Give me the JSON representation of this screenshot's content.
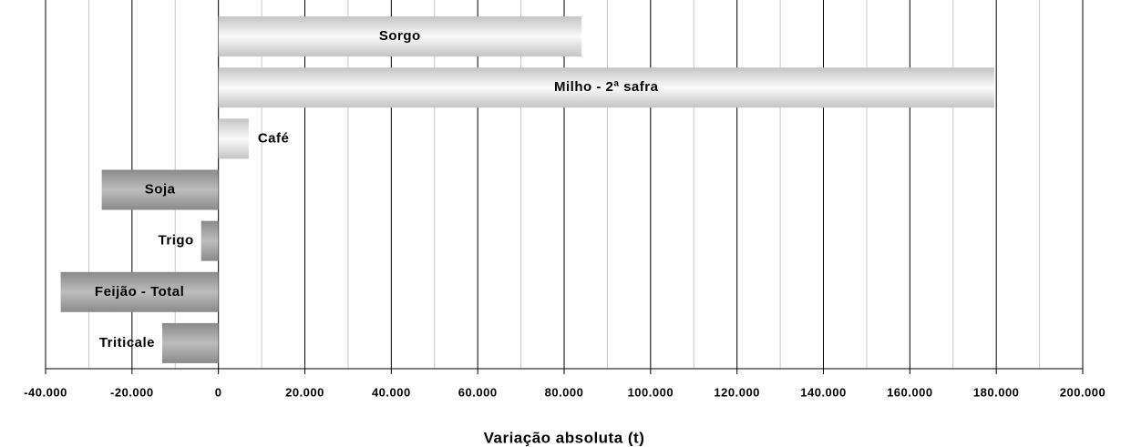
{
  "chart_data": {
    "type": "barh",
    "xlabel": "Variação absoluta (t)",
    "categories": [
      "Sorgo",
      "Milho -  2ª safra",
      "Café",
      "Soja",
      "Trigo",
      "Feijão - Total",
      "Triticale"
    ],
    "values": [
      84000,
      179500,
      7000,
      -27000,
      -4000,
      -36500,
      -13000
    ],
    "colors": [
      "#c4c4c4",
      "#c4c4c4",
      "#c4c4c4",
      "#8a8a8a",
      "#8a8a8a",
      "#8a8a8a",
      "#8a8a8a"
    ],
    "xlim": [
      -40000,
      200000
    ],
    "xticks": [
      {
        "value": -40000,
        "label": "-40.000"
      },
      {
        "value": -20000,
        "label": "-20.000"
      },
      0,
      {
        "value": 20000,
        "label": "20.000"
      },
      {
        "value": 40000,
        "label": "40.000"
      },
      {
        "value": 60000,
        "label": "60.000"
      },
      {
        "value": 80000,
        "label": "80.000"
      },
      {
        "value": 100000,
        "label": "100.000"
      },
      {
        "value": 120000,
        "label": "120.000"
      },
      {
        "value": 140000,
        "label": "140.000"
      },
      {
        "value": 160000,
        "label": "160.000"
      },
      {
        "value": 180000,
        "label": "180.000"
      },
      {
        "value": 200000,
        "label": "200.000"
      }
    ],
    "xticks_minor": [
      -30000,
      -10000,
      10000,
      30000,
      50000,
      70000,
      90000,
      110000,
      130000,
      150000,
      170000,
      190000
    ],
    "grid": true
  }
}
